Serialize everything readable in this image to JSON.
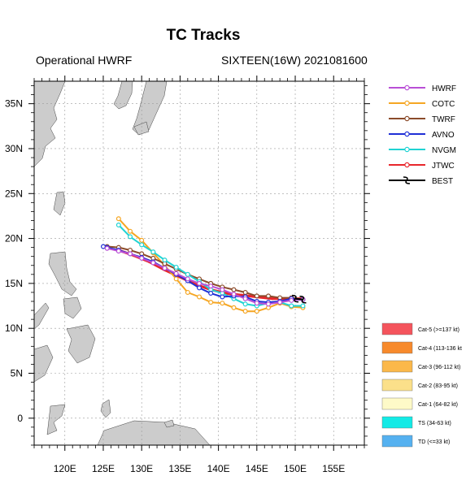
{
  "title": "TC Tracks",
  "subtitle_left": "Operational HWRF",
  "subtitle_right": "SIXTEEN(16W) 2021081600",
  "map": {
    "lon_range": [
      116,
      159
    ],
    "lat_range": [
      -3,
      37.5
    ],
    "lon_ticks": [
      120,
      125,
      130,
      135,
      140,
      145,
      150,
      155
    ],
    "lon_labels": [
      "120E",
      "125E",
      "130E",
      "135E",
      "140E",
      "145E",
      "150E",
      "155E"
    ],
    "lat_ticks": [
      0,
      5,
      10,
      15,
      20,
      25,
      30,
      35
    ],
    "lat_labels": [
      "0",
      "5N",
      "10N",
      "15N",
      "20N",
      "25N",
      "30N",
      "35N"
    ],
    "land_color": "#cccccc",
    "grid": "dotted"
  },
  "legend": [
    {
      "name": "HWRF",
      "color": "#b94fd6",
      "marker": "circle"
    },
    {
      "name": "COTC",
      "color": "#f5a623",
      "marker": "circle"
    },
    {
      "name": "TWRF",
      "color": "#8b4b2a",
      "marker": "circle"
    },
    {
      "name": "AVNO",
      "color": "#1f2fd6",
      "marker": "circle"
    },
    {
      "name": "NVGM",
      "color": "#20d3d3",
      "marker": "circle"
    },
    {
      "name": "JTWC",
      "color": "#e8262c",
      "marker": "circle"
    },
    {
      "name": "BEST",
      "color": "#000000",
      "marker": "tc-symbol"
    }
  ],
  "intensity_legend": [
    {
      "label": "Cat-5 (>=137 kt)",
      "color": "#f4545c"
    },
    {
      "label": "Cat-4 (113-136 kt",
      "color": "#f78a2c"
    },
    {
      "label": "Cat-3 (96-112 kt)",
      "color": "#fbb84a"
    },
    {
      "label": "Cat-2 (83-95 kt)",
      "color": "#fbe08a"
    },
    {
      "label": "Cat-1 (64-82 kt)",
      "color": "#fefac8"
    },
    {
      "label": "TS (34-63 kt)",
      "color": "#13eae6"
    },
    {
      "label": "TD (<=33 kt)",
      "color": "#55b1f0"
    }
  ],
  "chart_data": {
    "type": "scatter",
    "x_unit": "degrees east",
    "y_unit": "degrees north",
    "series": [
      {
        "name": "HWRF",
        "points": [
          [
            151.0,
            13.2
          ],
          [
            149.5,
            13.1
          ],
          [
            148.0,
            12.9
          ],
          [
            146.5,
            12.7
          ],
          [
            145.0,
            12.8
          ],
          [
            143.5,
            13.3
          ],
          [
            142.0,
            13.8
          ],
          [
            140.5,
            14.3
          ],
          [
            139.0,
            14.7
          ],
          [
            137.5,
            15.0
          ],
          [
            136.0,
            15.5
          ],
          [
            134.5,
            16.1
          ],
          [
            133.0,
            16.7
          ],
          [
            131.5,
            17.3
          ],
          [
            130.0,
            17.8
          ],
          [
            128.5,
            18.3
          ],
          [
            127.0,
            18.6
          ],
          [
            125.5,
            18.9
          ]
        ]
      },
      {
        "name": "COTC",
        "points": [
          [
            151.0,
            12.3
          ],
          [
            149.5,
            12.4
          ],
          [
            148.0,
            12.8
          ],
          [
            146.5,
            12.3
          ],
          [
            145.0,
            11.9
          ],
          [
            143.5,
            11.9
          ],
          [
            142.0,
            12.3
          ],
          [
            140.5,
            12.8
          ],
          [
            139.0,
            12.9
          ],
          [
            137.5,
            13.5
          ],
          [
            136.0,
            14.0
          ],
          [
            134.5,
            15.5
          ],
          [
            133.0,
            17.0
          ],
          [
            131.5,
            18.4
          ],
          [
            130.0,
            19.8
          ],
          [
            128.5,
            20.8
          ],
          [
            127.0,
            22.2
          ]
        ]
      },
      {
        "name": "TWRF",
        "points": [
          [
            151.0,
            13.2
          ],
          [
            149.5,
            13.4
          ],
          [
            148.0,
            13.4
          ],
          [
            146.5,
            13.6
          ],
          [
            145.0,
            13.6
          ],
          [
            143.5,
            14.0
          ],
          [
            142.0,
            14.3
          ],
          [
            140.5,
            14.6
          ],
          [
            139.0,
            15.0
          ],
          [
            137.5,
            15.5
          ],
          [
            136.0,
            16.0
          ],
          [
            134.5,
            16.6
          ],
          [
            133.0,
            17.2
          ],
          [
            131.5,
            17.8
          ],
          [
            130.0,
            18.3
          ],
          [
            128.5,
            18.7
          ],
          [
            127.0,
            19.0
          ],
          [
            125.5,
            19.1
          ]
        ]
      },
      {
        "name": "AVNO",
        "points": [
          [
            151.0,
            13.2
          ],
          [
            149.5,
            13.3
          ],
          [
            148.0,
            13.0
          ],
          [
            146.5,
            12.9
          ],
          [
            145.0,
            13.0
          ],
          [
            143.5,
            13.5
          ],
          [
            142.0,
            13.6
          ],
          [
            140.5,
            13.5
          ],
          [
            139.0,
            13.9
          ],
          [
            137.5,
            14.5
          ],
          [
            136.0,
            15.3
          ],
          [
            134.5,
            16.0
          ],
          [
            133.0,
            16.7
          ],
          [
            131.5,
            17.4
          ],
          [
            130.0,
            17.9
          ],
          [
            128.5,
            18.3
          ],
          [
            127.0,
            18.7
          ],
          [
            125.5,
            19.0
          ],
          [
            125.0,
            19.1
          ]
        ]
      },
      {
        "name": "NVGM",
        "points": [
          [
            151.0,
            12.5
          ],
          [
            149.5,
            12.5
          ],
          [
            148.0,
            12.9
          ],
          [
            146.5,
            12.8
          ],
          [
            145.0,
            12.5
          ],
          [
            143.5,
            12.7
          ],
          [
            142.0,
            13.3
          ],
          [
            140.5,
            13.9
          ],
          [
            139.0,
            14.3
          ],
          [
            137.5,
            15.2
          ],
          [
            136.0,
            16.0
          ],
          [
            134.5,
            16.8
          ],
          [
            133.0,
            17.6
          ],
          [
            131.5,
            18.5
          ],
          [
            130.0,
            19.3
          ],
          [
            128.5,
            20.2
          ],
          [
            127.0,
            21.5
          ]
        ]
      },
      {
        "name": "JTWC",
        "points": [
          [
            151.0,
            13.3
          ],
          [
            149.0,
            13.3
          ],
          [
            147.0,
            13.3
          ],
          [
            145.0,
            13.5
          ],
          [
            143.0,
            13.7
          ],
          [
            141.0,
            13.9
          ],
          [
            139.0,
            14.3
          ],
          [
            137.0,
            14.9
          ],
          [
            135.0,
            15.7
          ],
          [
            133.0,
            16.5
          ],
          [
            131.0,
            17.4
          ],
          [
            129.0,
            18.1
          ],
          [
            127.0,
            18.7
          ]
        ]
      },
      {
        "name": "BEST",
        "points": [
          [
            150.0,
            13.3
          ],
          [
            151.0,
            13.2
          ]
        ]
      }
    ]
  }
}
